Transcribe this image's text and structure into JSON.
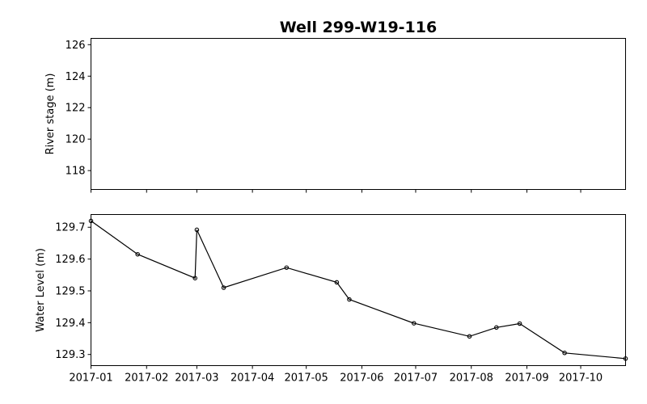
{
  "chart_data": [
    {
      "type": "line",
      "title": "Well 299-W19-116",
      "ylabel": "River stage (m)",
      "xlabel": "",
      "x_range": [
        "2017-01-01",
        "2017-10-26"
      ],
      "ylim": [
        116.8,
        126.4
      ],
      "y_ticks": [
        118,
        120,
        122,
        124,
        126
      ],
      "x_ticks": [
        "2017-01",
        "2017-02",
        "2017-03",
        "2017-04",
        "2017-05",
        "2017-06",
        "2017-07",
        "2017-08",
        "2017-09",
        "2017-10"
      ],
      "series": []
    },
    {
      "type": "line",
      "ylabel": "Water Level (m)",
      "xlabel": "",
      "x_range": [
        "2017-01-01",
        "2017-10-26"
      ],
      "ylim": [
        129.265,
        129.74
      ],
      "y_ticks": [
        129.3,
        129.4,
        129.5,
        129.6,
        129.7
      ],
      "x_ticks": [
        "2017-01",
        "2017-02",
        "2017-03",
        "2017-04",
        "2017-05",
        "2017-06",
        "2017-07",
        "2017-08",
        "2017-09",
        "2017-10"
      ],
      "marker": "circle-open",
      "series": [
        {
          "points": [
            {
              "x": "2017-01-01",
              "y": 129.72
            },
            {
              "x": "2017-01-27",
              "y": 129.615
            },
            {
              "x": "2017-02-28",
              "y": 129.54
            },
            {
              "x": "2017-03-01",
              "y": 129.692
            },
            {
              "x": "2017-03-16",
              "y": 129.51
            },
            {
              "x": "2017-04-20",
              "y": 129.573
            },
            {
              "x": "2017-05-18",
              "y": 129.527
            },
            {
              "x": "2017-05-25",
              "y": 129.473
            },
            {
              "x": "2017-06-30",
              "y": 129.398
            },
            {
              "x": "2017-07-31",
              "y": 129.357
            },
            {
              "x": "2017-08-15",
              "y": 129.385
            },
            {
              "x": "2017-08-28",
              "y": 129.397
            },
            {
              "x": "2017-09-22",
              "y": 129.305
            },
            {
              "x": "2017-10-26",
              "y": 129.287
            }
          ]
        }
      ]
    }
  ]
}
